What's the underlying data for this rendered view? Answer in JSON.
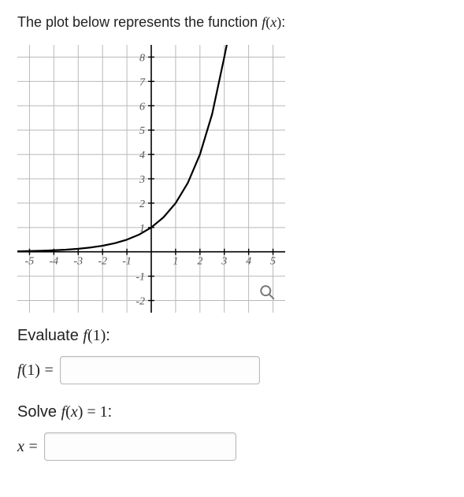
{
  "intro": {
    "prefix": "The plot below represents the function ",
    "func": "f",
    "arg": "x",
    "suffix": ":"
  },
  "chart": {
    "type": "line",
    "background_color": "#ffffff",
    "grid_color": "#b9b9b9",
    "axis_color": "#000000",
    "curve_color": "#000000",
    "curve_width": 2.2,
    "tick_font_size": 14,
    "tick_font_family": "Times New Roman, serif",
    "tick_font_style": "italic",
    "xlim": [
      -5.5,
      5.5
    ],
    "ylim": [
      -2.5,
      8.5
    ],
    "x_ticks": [
      -5,
      -4,
      -3,
      -2,
      -1,
      1,
      2,
      3,
      4,
      5
    ],
    "y_ticks": [
      -2,
      -1,
      1,
      2,
      3,
      4,
      5,
      6,
      7,
      8
    ],
    "curve_points": [
      [
        -5.5,
        0.022
      ],
      [
        -5,
        0.031
      ],
      [
        -4.5,
        0.044
      ],
      [
        -4,
        0.063
      ],
      [
        -3.5,
        0.088
      ],
      [
        -3,
        0.125
      ],
      [
        -2.5,
        0.177
      ],
      [
        -2,
        0.25
      ],
      [
        -1.5,
        0.354
      ],
      [
        -1,
        0.5
      ],
      [
        -0.5,
        0.707
      ],
      [
        0,
        1
      ],
      [
        0.5,
        1.414
      ],
      [
        1,
        2
      ],
      [
        1.5,
        2.828
      ],
      [
        2,
        4
      ],
      [
        2.5,
        5.657
      ],
      [
        3,
        8
      ],
      [
        3.1,
        8.5
      ]
    ],
    "magnifier": {
      "x_data": 4.7,
      "y_data": -1.6,
      "color": "#7a7a7a"
    }
  },
  "q1": {
    "prefix": "Evaluate ",
    "func": "f",
    "open": "(",
    "val": "1",
    "close": ")",
    "suffix": ":"
  },
  "eq1": {
    "lhs_func": "f",
    "lhs_open": "(",
    "lhs_val": "1",
    "lhs_close": ")",
    "equals": "=",
    "value": "",
    "placeholder": ""
  },
  "q2": {
    "prefix": "Solve ",
    "func": "f",
    "open": "(",
    "arg": "x",
    "close": ")",
    "equals": " = ",
    "rhs": "1",
    "suffix": ":"
  },
  "eq2": {
    "lhs": "x",
    "equals": "=",
    "value": "",
    "placeholder": ""
  }
}
